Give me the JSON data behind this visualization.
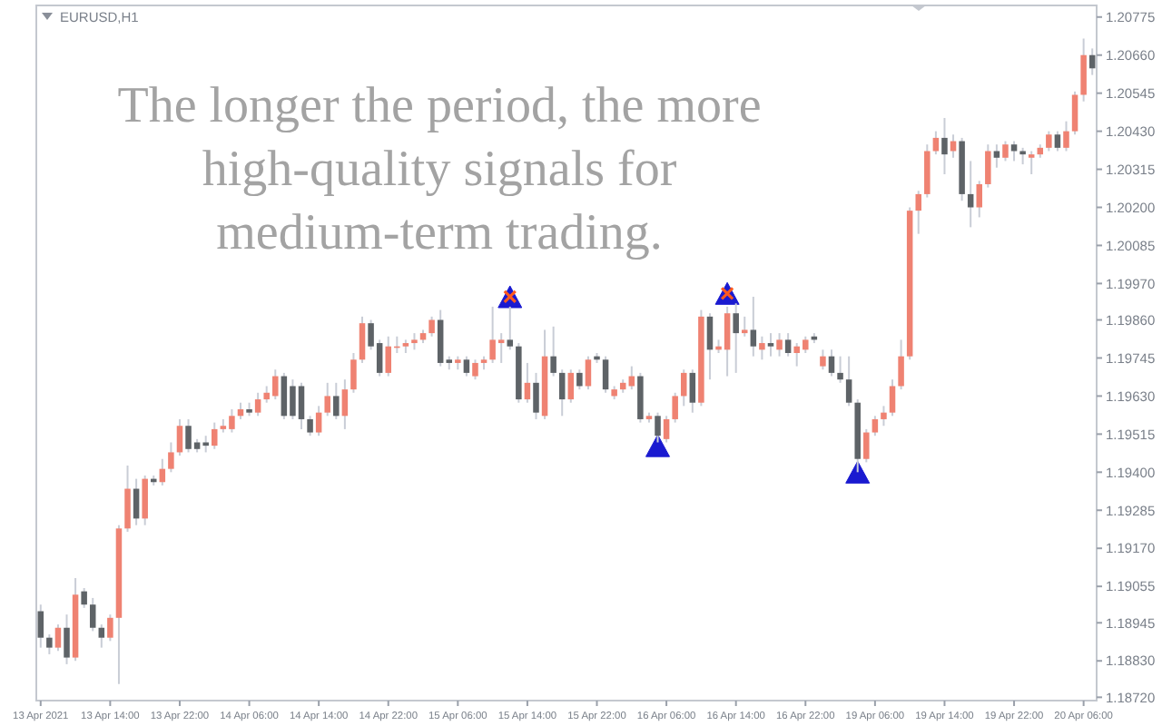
{
  "chart_data": {
    "type": "candlestick",
    "title": "EURUSD,H1",
    "annotations": [
      "The longer the period, the more high-quality signals for medium-term trading."
    ],
    "categories": [
      "13 Apr 2021",
      null,
      null,
      null,
      null,
      null,
      null,
      null,
      "13 Apr 14:00",
      null,
      null,
      null,
      null,
      null,
      null,
      null,
      "13 Apr 22:00",
      null,
      null,
      null,
      null,
      null,
      null,
      null,
      "14 Apr 06:00",
      null,
      null,
      null,
      null,
      null,
      null,
      null,
      "14 Apr 14:00",
      null,
      null,
      null,
      null,
      null,
      null,
      null,
      "14 Apr 22:00",
      null,
      null,
      null,
      null,
      null,
      null,
      null,
      "15 Apr 06:00",
      null,
      null,
      null,
      null,
      null,
      null,
      null,
      "15 Apr 14:00",
      null,
      null,
      null,
      null,
      null,
      null,
      null,
      "15 Apr 22:00",
      null,
      null,
      null,
      null,
      null,
      null,
      null,
      "16 Apr 06:00",
      null,
      null,
      null,
      null,
      null,
      null,
      null,
      "16 Apr 14:00",
      null,
      null,
      null,
      null,
      null,
      null,
      null,
      "16 Apr 22:00",
      null,
      null,
      null,
      null,
      null,
      null,
      null,
      "19 Apr 06:00",
      null,
      null,
      null,
      null,
      null,
      null,
      null,
      "19 Apr 14:00",
      null,
      null,
      null,
      null,
      null,
      null,
      null,
      "19 Apr 22:00",
      null,
      null,
      null,
      null,
      null,
      null,
      null,
      "20 Apr 06:00",
      null
    ],
    "ohlc": [
      [
        1.1898,
        1.19,
        1.1887,
        1.189
      ],
      [
        1.189,
        1.1891,
        1.1885,
        1.1887
      ],
      [
        1.1887,
        1.1894,
        1.1886,
        1.1893
      ],
      [
        1.1893,
        1.1897,
        1.1882,
        1.1884
      ],
      [
        1.1884,
        1.1908,
        1.1883,
        1.1903
      ],
      [
        1.1904,
        1.1905,
        1.1899,
        1.19
      ],
      [
        1.19,
        1.1902,
        1.1892,
        1.1893
      ],
      [
        1.1893,
        1.1894,
        1.1887,
        1.189
      ],
      [
        1.189,
        1.1897,
        1.1889,
        1.1896
      ],
      [
        1.1896,
        1.1924,
        1.1876,
        1.1923
      ],
      [
        1.1923,
        1.1942,
        1.1922,
        1.1935
      ],
      [
        1.1935,
        1.1938,
        1.1924,
        1.1926
      ],
      [
        1.1926,
        1.1939,
        1.1924,
        1.1938
      ],
      [
        1.1938,
        1.1939,
        1.1936,
        1.1937
      ],
      [
        1.1937,
        1.1944,
        1.1936,
        1.1941
      ],
      [
        1.1941,
        1.1949,
        1.194,
        1.1946
      ],
      [
        1.1946,
        1.1956,
        1.1945,
        1.1954
      ],
      [
        1.1954,
        1.1956,
        1.1946,
        1.1947
      ],
      [
        1.1949,
        1.195,
        1.1946,
        1.1947
      ],
      [
        1.1949,
        1.1951,
        1.1946,
        1.1948
      ],
      [
        1.1948,
        1.1955,
        1.1947,
        1.1953
      ],
      [
        1.1953,
        1.1956,
        1.1952,
        1.1954
      ],
      [
        1.1953,
        1.1959,
        1.1952,
        1.1957
      ],
      [
        1.1957,
        1.1961,
        1.1956,
        1.1959
      ],
      [
        1.1959,
        1.1961,
        1.1957,
        1.1958
      ],
      [
        1.1958,
        1.1964,
        1.1957,
        1.1962
      ],
      [
        1.1962,
        1.1966,
        1.1961,
        1.1964
      ],
      [
        1.1963,
        1.1971,
        1.1962,
        1.1969
      ],
      [
        1.1969,
        1.197,
        1.1956,
        1.1957
      ],
      [
        1.1966,
        1.1968,
        1.1956,
        1.1957
      ],
      [
        1.1966,
        1.1967,
        1.1953,
        1.1956
      ],
      [
        1.1956,
        1.1957,
        1.1951,
        1.1952
      ],
      [
        1.1952,
        1.196,
        1.1951,
        1.1958
      ],
      [
        1.1958,
        1.1967,
        1.1957,
        1.1963
      ],
      [
        1.1963,
        1.1967,
        1.1956,
        1.1957
      ],
      [
        1.1957,
        1.1968,
        1.1953,
        1.1965
      ],
      [
        1.1965,
        1.1976,
        1.1964,
        1.1974
      ],
      [
        1.1974,
        1.1987,
        1.1973,
        1.1985
      ],
      [
        1.1985,
        1.1986,
        1.1977,
        1.1978
      ],
      [
        1.1979,
        1.198,
        1.1969,
        1.197
      ],
      [
        1.197,
        1.1981,
        1.1969,
        1.1978
      ],
      [
        1.1978,
        1.1981,
        1.1976,
        1.1978
      ],
      [
        1.1978,
        1.198,
        1.1976,
        1.1979
      ],
      [
        1.1979,
        1.1982,
        1.1977,
        1.198
      ],
      [
        1.198,
        1.1983,
        1.1979,
        1.1982
      ],
      [
        1.1982,
        1.1987,
        1.1981,
        1.1986
      ],
      [
        1.1986,
        1.1989,
        1.1972,
        1.1973
      ],
      [
        1.1974,
        1.1975,
        1.1971,
        1.1973
      ],
      [
        1.1973,
        1.1975,
        1.1971,
        1.1974
      ],
      [
        1.1974,
        1.1975,
        1.1969,
        1.197
      ],
      [
        1.1969,
        1.1974,
        1.1968,
        1.1973
      ],
      [
        1.1973,
        1.1975,
        1.1971,
        1.1974
      ],
      [
        1.1974,
        1.199,
        1.1973,
        1.198
      ],
      [
        1.1979,
        1.1982,
        1.1973,
        1.198
      ],
      [
        1.198,
        1.199,
        1.1977,
        1.1978
      ],
      [
        1.1978,
        1.1979,
        1.1961,
        1.1962
      ],
      [
        1.1962,
        1.1973,
        1.1961,
        1.1967
      ],
      [
        1.1967,
        1.197,
        1.1956,
        1.1958
      ],
      [
        1.1957,
        1.1983,
        1.1956,
        1.1975
      ],
      [
        1.1975,
        1.1984,
        1.1969,
        1.197
      ],
      [
        1.197,
        1.1971,
        1.1957,
        1.1962
      ],
      [
        1.1962,
        1.1971,
        1.1961,
        1.197
      ],
      [
        1.197,
        1.1971,
        1.1965,
        1.1966
      ],
      [
        1.1966,
        1.1975,
        1.1965,
        1.1974
      ],
      [
        1.1975,
        1.1976,
        1.1973,
        1.1974
      ],
      [
        1.1974,
        1.1975,
        1.1964,
        1.1965
      ],
      [
        1.1963,
        1.1966,
        1.1962,
        1.1965
      ],
      [
        1.1965,
        1.1968,
        1.1964,
        1.1967
      ],
      [
        1.1966,
        1.1972,
        1.1965,
        1.1969
      ],
      [
        1.1969,
        1.197,
        1.1955,
        1.1956
      ],
      [
        1.1956,
        1.1958,
        1.1955,
        1.1957
      ],
      [
        1.1957,
        1.1958,
        1.1949,
        1.1951
      ],
      [
        1.195,
        1.1957,
        1.1949,
        1.1956
      ],
      [
        1.1956,
        1.1964,
        1.1955,
        1.1963
      ],
      [
        1.1963,
        1.1971,
        1.196,
        1.197
      ],
      [
        1.197,
        1.1971,
        1.1958,
        1.1961
      ],
      [
        1.1961,
        1.1989,
        1.196,
        1.1987
      ],
      [
        1.1987,
        1.1988,
        1.1968,
        1.1977
      ],
      [
        1.1977,
        1.198,
        1.1976,
        1.1978
      ],
      [
        1.1977,
        1.199,
        1.1969,
        1.1988
      ],
      [
        1.1988,
        1.1991,
        1.197,
        1.1982
      ],
      [
        1.1982,
        1.1987,
        1.1981,
        1.1983
      ],
      [
        1.1983,
        1.1993,
        1.1975,
        1.1978
      ],
      [
        1.1977,
        1.1981,
        1.1974,
        1.1979
      ],
      [
        1.1979,
        1.1982,
        1.1975,
        1.1978
      ],
      [
        1.1977,
        1.1982,
        1.1975,
        1.198
      ],
      [
        1.198,
        1.1982,
        1.1975,
        1.1976
      ],
      [
        1.1976,
        1.1979,
        1.1972,
        1.1978
      ],
      [
        1.1977,
        1.1981,
        1.1976,
        1.198
      ],
      [
        1.1981,
        1.1982,
        1.1979,
        1.198
      ],
      [
        1.1972,
        1.1977,
        1.1971,
        1.1975
      ],
      [
        1.1975,
        1.1977,
        1.1969,
        1.197
      ],
      [
        1.197,
        1.1975,
        1.1967,
        1.1968
      ],
      [
        1.1968,
        1.1975,
        1.196,
        1.1961
      ],
      [
        1.1961,
        1.1962,
        1.194,
        1.1944
      ],
      [
        1.1944,
        1.1953,
        1.1943,
        1.1952
      ],
      [
        1.1952,
        1.1957,
        1.1951,
        1.1956
      ],
      [
        1.1956,
        1.196,
        1.1954,
        1.1958
      ],
      [
        1.1958,
        1.1968,
        1.1957,
        1.1966
      ],
      [
        1.1966,
        1.198,
        1.1965,
        1.1975
      ],
      [
        1.1975,
        1.202,
        1.1974,
        1.2019
      ],
      [
        1.2019,
        1.2025,
        1.2012,
        1.2024
      ],
      [
        1.2024,
        1.2039,
        1.2023,
        1.2037
      ],
      [
        1.2037,
        1.2043,
        1.2036,
        1.2041
      ],
      [
        1.2041,
        1.2047,
        1.203,
        1.2036
      ],
      [
        1.2037,
        1.2042,
        1.2035,
        1.204
      ],
      [
        1.204,
        1.2041,
        1.2022,
        1.2024
      ],
      [
        1.2024,
        1.2034,
        1.2014,
        1.202
      ],
      [
        1.202,
        1.2028,
        1.2017,
        1.2027
      ],
      [
        1.2027,
        1.2039,
        1.2026,
        1.2037
      ],
      [
        1.2037,
        1.2039,
        1.2032,
        1.2035
      ],
      [
        1.2035,
        1.204,
        1.2034,
        1.2039
      ],
      [
        1.2039,
        1.204,
        1.2034,
        1.2037
      ],
      [
        1.2037,
        1.2038,
        1.2033,
        1.2036
      ],
      [
        1.2035,
        1.2037,
        1.203,
        1.2036
      ],
      [
        1.2036,
        1.2039,
        1.2035,
        1.2038
      ],
      [
        1.2038,
        1.2043,
        1.2037,
        1.2042
      ],
      [
        1.2042,
        1.2043,
        1.2037,
        1.2038
      ],
      [
        1.2038,
        1.2046,
        1.2037,
        1.2043
      ],
      [
        1.2043,
        1.2055,
        1.2042,
        1.2054
      ],
      [
        1.2054,
        1.2071,
        1.2052,
        1.2066
      ],
      [
        1.2066,
        1.2068,
        1.206,
        1.2062
      ]
    ],
    "colors": [
      "#5e6367",
      "#5e6367",
      "#ef8272",
      "#5e6367",
      "#ef8272",
      "#5e6367",
      "#5e6367",
      "#5e6367",
      "#ef8272",
      "#ef8272",
      "#ef8272",
      "#5e6367",
      "#ef8272",
      "#5e6367",
      "#ef8272",
      "#ef8272",
      "#ef8272",
      "#5e6367",
      "#5e6367",
      "#5e6367",
      "#ef8272",
      "#ef8272",
      "#ef8272",
      "#ef8272",
      "#5e6367",
      "#ef8272",
      "#ef8272",
      "#ef8272",
      "#5e6367",
      "#5e6367",
      "#5e6367",
      "#5e6367",
      "#ef8272",
      "#ef8272",
      "#5e6367",
      "#ef8272",
      "#ef8272",
      "#ef8272",
      "#5e6367",
      "#5e6367",
      "#ef8272",
      "#ef8272",
      "#ef8272",
      "#ef8272",
      "#ef8272",
      "#ef8272",
      "#5e6367",
      "#5e6367",
      "#ef8272",
      "#5e6367",
      "#ef8272",
      "#ef8272",
      "#ef8272",
      "#ef8272",
      "#5e6367",
      "#5e6367",
      "#ef8272",
      "#5e6367",
      "#ef8272",
      "#5e6367",
      "#5e6367",
      "#ef8272",
      "#5e6367",
      "#ef8272",
      "#5e6367",
      "#5e6367",
      "#ef8272",
      "#ef8272",
      "#ef8272",
      "#5e6367",
      "#ef8272",
      "#5e6367",
      "#ef8272",
      "#ef8272",
      "#ef8272",
      "#5e6367",
      "#ef8272",
      "#5e6367",
      "#ef8272",
      "#ef8272",
      "#5e6367",
      "#ef8272",
      "#5e6367",
      "#ef8272",
      "#5e6367",
      "#ef8272",
      "#5e6367",
      "#ef8272",
      "#ef8272",
      "#5e6367",
      "#ef8272",
      "#5e6367",
      "#5e6367",
      "#5e6367",
      "#5e6367",
      "#ef8272",
      "#ef8272",
      "#ef8272",
      "#ef8272",
      "#ef8272",
      "#ef8272",
      "#ef8272",
      "#ef8272",
      "#ef8272",
      "#5e6367",
      "#ef8272",
      "#5e6367",
      "#5e6367",
      "#ef8272",
      "#ef8272",
      "#5e6367",
      "#ef8272",
      "#5e6367",
      "#5e6367",
      "#ef8272",
      "#ef8272",
      "#ef8272",
      "#5e6367",
      "#ef8272",
      "#ef8272",
      "#ef8272",
      "#5e6367"
    ],
    "series": [
      {
        "type": "scatter",
        "marker": "triangle",
        "color": "#1a1ad0",
        "values": [
          null,
          null,
          null,
          null,
          null,
          null,
          null,
          null,
          null,
          null,
          null,
          null,
          null,
          null,
          null,
          null,
          null,
          null,
          null,
          null,
          null,
          null,
          null,
          null,
          null,
          null,
          null,
          null,
          null,
          null,
          null,
          null,
          null,
          null,
          null,
          null,
          null,
          null,
          null,
          null,
          null,
          null,
          null,
          null,
          null,
          null,
          null,
          null,
          null,
          null,
          null,
          null,
          null,
          null,
          1.1993,
          null,
          null,
          null,
          null,
          null,
          null,
          null,
          null,
          null,
          null,
          null,
          null,
          null,
          null,
          null,
          null,
          1.1948,
          null,
          null,
          null,
          null,
          null,
          null,
          null,
          1.1994,
          null,
          null,
          null,
          null,
          null,
          null,
          null,
          null,
          null,
          null,
          null,
          null,
          null,
          null,
          1.194,
          null,
          null,
          null,
          null,
          null,
          null,
          null,
          null,
          null,
          null,
          null,
          null,
          null,
          null,
          null,
          null,
          null,
          null,
          null,
          null,
          null,
          null,
          null,
          null,
          null,
          null,
          null
        ]
      },
      {
        "type": "scatter",
        "marker": "cross",
        "color": "#ff5a1e",
        "values": [
          null,
          null,
          null,
          null,
          null,
          null,
          null,
          null,
          null,
          null,
          null,
          null,
          null,
          null,
          null,
          null,
          null,
          null,
          null,
          null,
          null,
          null,
          null,
          null,
          null,
          null,
          null,
          null,
          null,
          null,
          null,
          null,
          null,
          null,
          null,
          null,
          null,
          null,
          null,
          null,
          null,
          null,
          null,
          null,
          null,
          null,
          null,
          null,
          null,
          null,
          null,
          null,
          null,
          null,
          1.1993,
          null,
          null,
          null,
          null,
          null,
          null,
          null,
          null,
          null,
          null,
          null,
          null,
          null,
          null,
          null,
          null,
          null,
          null,
          null,
          null,
          null,
          null,
          null,
          null,
          1.1994,
          null,
          null,
          null,
          null,
          null,
          null,
          null,
          null,
          null,
          null,
          null,
          null,
          null,
          null,
          null,
          null,
          null,
          null,
          null,
          null,
          null,
          null,
          null,
          null,
          null,
          null,
          null,
          null,
          null,
          null,
          null,
          null,
          null,
          null,
          null,
          null,
          null,
          null,
          null,
          null,
          null,
          null
        ]
      }
    ],
    "ylim": [
      1.1871,
      1.2081
    ],
    "yticks": [
      1.20775,
      {
        "value": 1.2066,
        "label": "1.20660"
      },
      1.20545,
      {
        "value": 1.2043,
        "label": "1.20430"
      },
      1.20315,
      {
        "value": 1.202,
        "label": "1.20200"
      },
      1.20085,
      {
        "value": 1.1997,
        "label": "1.19970"
      },
      {
        "value": 1.1986,
        "label": "1.19860"
      },
      1.19745,
      {
        "value": 1.1963,
        "label": "1.19630"
      },
      1.19515,
      {
        "value": 1.194,
        "label": "1.19400"
      },
      1.19285,
      {
        "value": 1.1917,
        "label": "1.19170"
      },
      1.19055,
      1.18945,
      {
        "value": 1.1883,
        "label": "1.18830"
      },
      {
        "value": 1.1872,
        "label": "1.18720"
      }
    ]
  }
}
